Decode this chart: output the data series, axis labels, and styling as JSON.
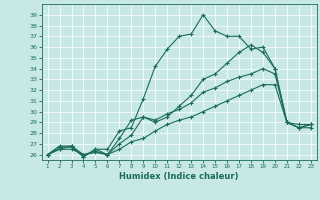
{
  "xlabel": "Humidex (Indice chaleur)",
  "background_color": "#c8e8e8",
  "line_color": "#1a6b5a",
  "x": [
    1,
    2,
    3,
    4,
    5,
    6,
    7,
    8,
    9,
    10,
    11,
    12,
    13,
    14,
    15,
    16,
    17,
    18,
    19,
    20,
    21,
    22,
    23
  ],
  "line1": [
    26,
    26.7,
    26.7,
    25.8,
    26.5,
    26.0,
    26.5,
    27.2,
    27.5,
    28.2,
    28.8,
    29.2,
    29.5,
    30.0,
    30.5,
    31.0,
    31.5,
    32.0,
    32.5,
    32.5,
    29.0,
    28.5,
    28.8
  ],
  "line2": [
    26,
    26.5,
    26.5,
    26.0,
    26.3,
    26.0,
    27.0,
    27.8,
    29.5,
    29.2,
    29.8,
    30.2,
    30.8,
    31.8,
    32.2,
    32.8,
    33.2,
    33.5,
    34.0,
    33.5,
    29.0,
    28.5,
    28.8
  ],
  "line3": [
    26,
    26.5,
    26.8,
    26.0,
    26.2,
    26.0,
    27.5,
    29.2,
    29.5,
    29.0,
    29.5,
    30.5,
    31.5,
    33.0,
    33.5,
    34.5,
    35.5,
    36.2,
    35.5,
    34.0,
    29.0,
    28.5,
    28.5
  ],
  "line4": [
    26,
    26.8,
    26.8,
    25.8,
    26.5,
    26.5,
    28.2,
    28.5,
    31.2,
    34.2,
    35.8,
    37.0,
    37.2,
    39.0,
    37.5,
    37.0,
    37.0,
    35.8,
    36.0,
    34.0,
    29.0,
    28.8,
    28.8
  ],
  "ylim": [
    25.5,
    40
  ],
  "xlim": [
    0.5,
    23.5
  ],
  "yticks": [
    26,
    27,
    28,
    29,
    30,
    31,
    32,
    33,
    34,
    35,
    36,
    37,
    38,
    39
  ],
  "xticks": [
    1,
    2,
    3,
    4,
    5,
    6,
    7,
    8,
    9,
    10,
    11,
    12,
    13,
    14,
    15,
    16,
    17,
    18,
    19,
    20,
    21,
    22,
    23
  ]
}
